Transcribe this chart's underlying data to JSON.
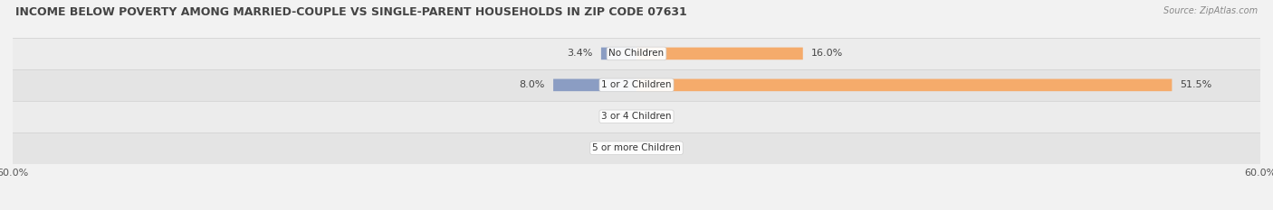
{
  "title": "INCOME BELOW POVERTY AMONG MARRIED-COUPLE VS SINGLE-PARENT HOUSEHOLDS IN ZIP CODE 07631",
  "source": "Source: ZipAtlas.com",
  "categories": [
    "No Children",
    "1 or 2 Children",
    "3 or 4 Children",
    "5 or more Children"
  ],
  "married_values": [
    3.4,
    8.0,
    0.0,
    0.0
  ],
  "single_values": [
    16.0,
    51.5,
    0.0,
    0.0
  ],
  "axis_limit": 60.0,
  "married_color": "#8B9DC3",
  "single_color": "#F5AB6B",
  "bar_height": 0.38,
  "title_fontsize": 9,
  "label_fontsize": 8,
  "axis_label_fontsize": 8,
  "category_fontsize": 7.5,
  "row_colors": [
    "#ececec",
    "#e4e4e4",
    "#ececec",
    "#e4e4e4"
  ],
  "fig_bg": "#f2f2f2"
}
